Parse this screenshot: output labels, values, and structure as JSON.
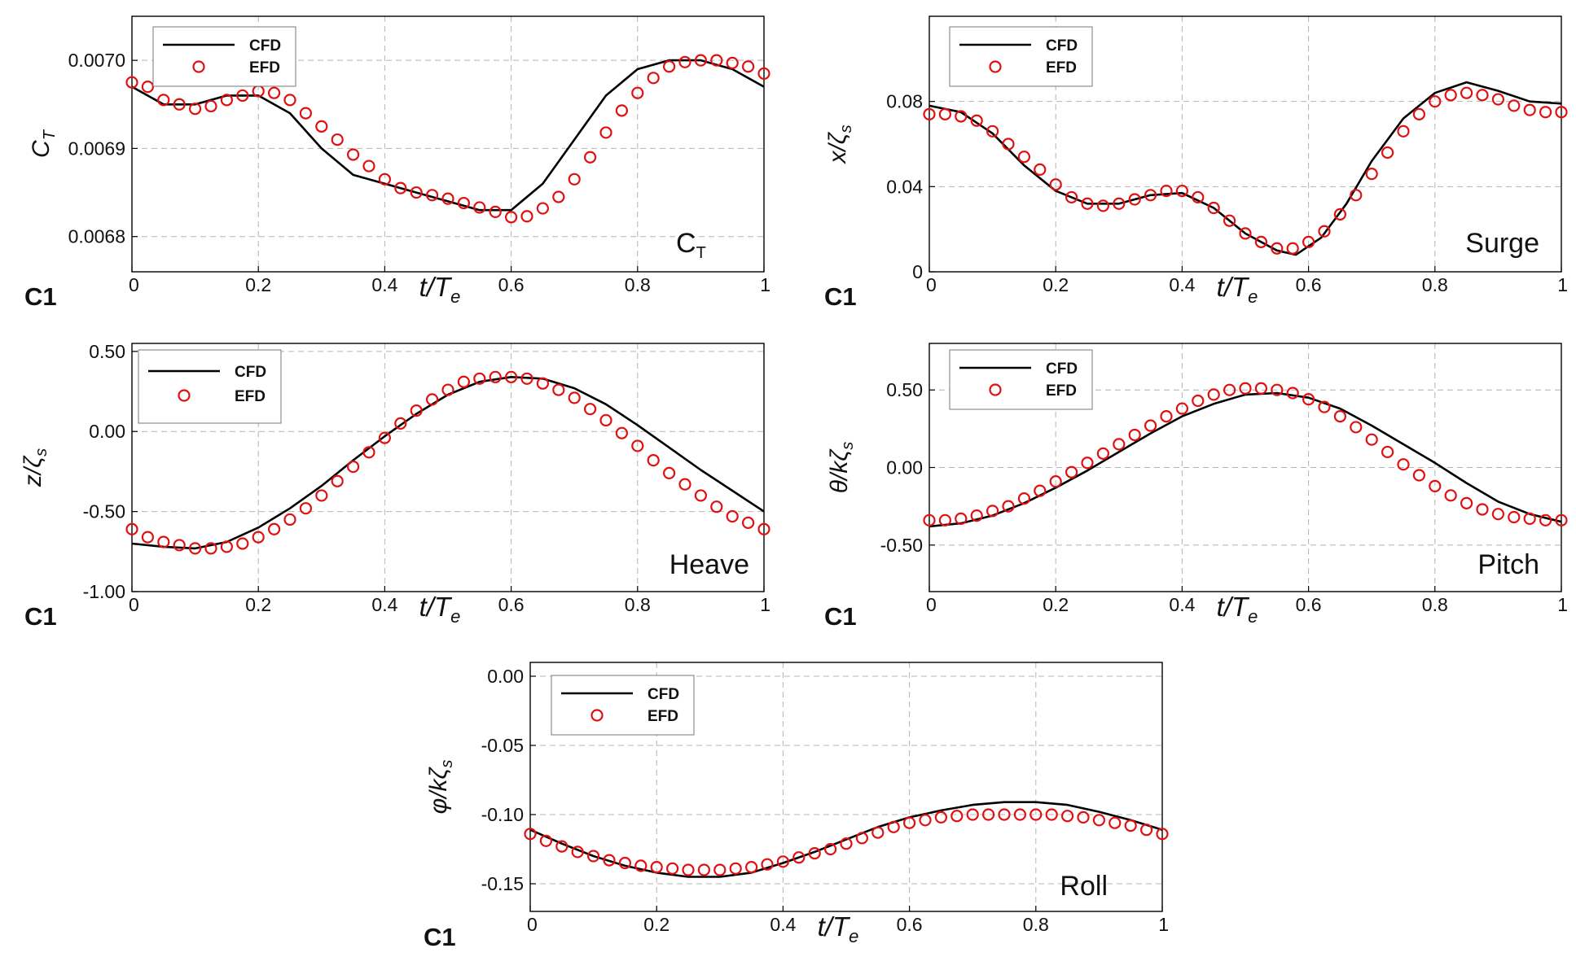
{
  "figure": {
    "x_label_main": "t/T",
    "x_label_sub": "e",
    "x_ticks": [
      "0",
      "0.2",
      "0.4",
      "0.6",
      "0.8",
      "1"
    ],
    "legend": {
      "cfd": "CFD",
      "efd": "EFD"
    },
    "colors": {
      "cfd": "#000000",
      "efd": "#e01010",
      "grid": "#b4b4b4",
      "frame": "#000000"
    },
    "icons": {
      "cfd": "line-icon",
      "efd": "circle-icon"
    }
  },
  "chart_data": [
    {
      "id": "ct",
      "type": "line",
      "case_label": "C1",
      "panel_label": "CT",
      "ylabel": "CT",
      "ylim": [
        0.00676,
        0.00705
      ],
      "xlim": [
        0,
        1
      ],
      "yticks": [
        0.0068,
        0.0069,
        0.007
      ],
      "ytick_labels": [
        "0.0068",
        "0.0069",
        "0.0070"
      ],
      "series": [
        {
          "name": "CFD",
          "x": [
            0,
            0.05,
            0.1,
            0.15,
            0.2,
            0.25,
            0.3,
            0.35,
            0.4,
            0.45,
            0.5,
            0.55,
            0.6,
            0.65,
            0.7,
            0.75,
            0.8,
            0.85,
            0.9,
            0.95,
            1
          ],
          "y": [
            0.00697,
            0.00695,
            0.00695,
            0.00696,
            0.00696,
            0.00694,
            0.0069,
            0.00687,
            0.00686,
            0.00685,
            0.00684,
            0.00683,
            0.00683,
            0.00686,
            0.00691,
            0.00696,
            0.00699,
            0.007,
            0.007,
            0.00699,
            0.00697
          ]
        },
        {
          "name": "EFD",
          "x": [
            0,
            0.025,
            0.05,
            0.075,
            0.1,
            0.125,
            0.15,
            0.175,
            0.2,
            0.225,
            0.25,
            0.275,
            0.3,
            0.325,
            0.35,
            0.375,
            0.4,
            0.425,
            0.45,
            0.475,
            0.5,
            0.525,
            0.55,
            0.575,
            0.6,
            0.625,
            0.65,
            0.675,
            0.7,
            0.725,
            0.75,
            0.775,
            0.8,
            0.825,
            0.85,
            0.875,
            0.9,
            0.925,
            0.95,
            0.975,
            1
          ],
          "y": [
            0.006975,
            0.00697,
            0.006955,
            0.00695,
            0.006945,
            0.006948,
            0.006955,
            0.00696,
            0.006965,
            0.006963,
            0.006955,
            0.00694,
            0.006925,
            0.00691,
            0.006893,
            0.00688,
            0.006865,
            0.006855,
            0.00685,
            0.006847,
            0.006843,
            0.006838,
            0.006833,
            0.006828,
            0.006822,
            0.006823,
            0.006832,
            0.006845,
            0.006865,
            0.00689,
            0.006918,
            0.006943,
            0.006963,
            0.00698,
            0.006993,
            0.006998,
            0.007,
            0.007,
            0.006997,
            0.006993,
            0.006985
          ]
        }
      ]
    },
    {
      "id": "surge",
      "type": "line",
      "case_label": "C1",
      "panel_label": "Surge",
      "ylabel": "x/ζs",
      "ylabel_main": "x/",
      "ylim": [
        0,
        0.12
      ],
      "xlim": [
        0,
        1
      ],
      "yticks": [
        0,
        0.04,
        0.08
      ],
      "ytick_labels": [
        "0",
        "0.04",
        "0.08"
      ],
      "series": [
        {
          "name": "CFD",
          "x": [
            0,
            0.05,
            0.1,
            0.15,
            0.2,
            0.25,
            0.3,
            0.35,
            0.4,
            0.45,
            0.5,
            0.55,
            0.58,
            0.62,
            0.66,
            0.7,
            0.75,
            0.8,
            0.85,
            0.9,
            0.95,
            1
          ],
          "y": [
            0.078,
            0.075,
            0.065,
            0.05,
            0.038,
            0.032,
            0.032,
            0.036,
            0.037,
            0.03,
            0.018,
            0.01,
            0.008,
            0.016,
            0.032,
            0.052,
            0.072,
            0.084,
            0.089,
            0.085,
            0.08,
            0.079
          ]
        },
        {
          "name": "EFD",
          "x": [
            0,
            0.025,
            0.05,
            0.075,
            0.1,
            0.125,
            0.15,
            0.175,
            0.2,
            0.225,
            0.25,
            0.275,
            0.3,
            0.325,
            0.35,
            0.375,
            0.4,
            0.425,
            0.45,
            0.475,
            0.5,
            0.525,
            0.55,
            0.575,
            0.6,
            0.625,
            0.65,
            0.675,
            0.7,
            0.725,
            0.75,
            0.775,
            0.8,
            0.825,
            0.85,
            0.875,
            0.9,
            0.925,
            0.95,
            0.975,
            1
          ],
          "y": [
            0.074,
            0.074,
            0.073,
            0.071,
            0.066,
            0.06,
            0.054,
            0.048,
            0.041,
            0.035,
            0.032,
            0.031,
            0.032,
            0.034,
            0.036,
            0.038,
            0.038,
            0.035,
            0.03,
            0.024,
            0.018,
            0.014,
            0.011,
            0.011,
            0.014,
            0.019,
            0.027,
            0.036,
            0.046,
            0.056,
            0.066,
            0.074,
            0.08,
            0.083,
            0.084,
            0.083,
            0.081,
            0.078,
            0.076,
            0.075,
            0.075
          ]
        }
      ]
    },
    {
      "id": "heave",
      "type": "line",
      "case_label": "C1",
      "panel_label": "Heave",
      "ylabel": "z/ζs",
      "ylabel_main": "z/",
      "ylim": [
        -1.0,
        0.55
      ],
      "xlim": [
        0,
        1
      ],
      "yticks": [
        -1.0,
        -0.5,
        0.0,
        0.5
      ],
      "ytick_labels": [
        "-1.00",
        "-0.50",
        "0.00",
        "0.50"
      ],
      "series": [
        {
          "name": "CFD",
          "x": [
            0,
            0.05,
            0.1,
            0.15,
            0.2,
            0.25,
            0.3,
            0.35,
            0.4,
            0.45,
            0.5,
            0.55,
            0.6,
            0.65,
            0.7,
            0.75,
            0.8,
            0.85,
            0.9,
            0.95,
            1
          ],
          "y": [
            -0.7,
            -0.72,
            -0.73,
            -0.69,
            -0.6,
            -0.48,
            -0.34,
            -0.18,
            -0.03,
            0.11,
            0.23,
            0.31,
            0.34,
            0.33,
            0.27,
            0.17,
            0.04,
            -0.1,
            -0.24,
            -0.37,
            -0.5
          ]
        },
        {
          "name": "EFD",
          "x": [
            0,
            0.025,
            0.05,
            0.075,
            0.1,
            0.125,
            0.15,
            0.175,
            0.2,
            0.225,
            0.25,
            0.275,
            0.3,
            0.325,
            0.35,
            0.375,
            0.4,
            0.425,
            0.45,
            0.475,
            0.5,
            0.525,
            0.55,
            0.575,
            0.6,
            0.625,
            0.65,
            0.675,
            0.7,
            0.725,
            0.75,
            0.775,
            0.8,
            0.825,
            0.85,
            0.875,
            0.9,
            0.925,
            0.95,
            0.975,
            1
          ],
          "y": [
            -0.61,
            -0.66,
            -0.69,
            -0.71,
            -0.73,
            -0.73,
            -0.72,
            -0.7,
            -0.66,
            -0.61,
            -0.55,
            -0.48,
            -0.4,
            -0.31,
            -0.22,
            -0.13,
            -0.04,
            0.05,
            0.13,
            0.2,
            0.26,
            0.31,
            0.33,
            0.34,
            0.34,
            0.33,
            0.3,
            0.26,
            0.21,
            0.14,
            0.07,
            -0.01,
            -0.09,
            -0.18,
            -0.26,
            -0.33,
            -0.4,
            -0.47,
            -0.53,
            -0.57,
            -0.61
          ]
        }
      ]
    },
    {
      "id": "pitch",
      "type": "line",
      "case_label": "C1",
      "panel_label": "Pitch",
      "ylabel": "θ/kζs",
      "ylabel_main": "θ/k",
      "ylim": [
        -0.8,
        0.8
      ],
      "xlim": [
        0,
        1
      ],
      "yticks": [
        -0.5,
        0.0,
        0.5
      ],
      "ytick_labels": [
        "-0.50",
        "0.00",
        "0.50"
      ],
      "series": [
        {
          "name": "CFD",
          "x": [
            0,
            0.05,
            0.1,
            0.15,
            0.2,
            0.25,
            0.3,
            0.35,
            0.4,
            0.45,
            0.5,
            0.55,
            0.6,
            0.65,
            0.7,
            0.75,
            0.8,
            0.85,
            0.9,
            0.95,
            1
          ],
          "y": [
            -0.38,
            -0.36,
            -0.31,
            -0.23,
            -0.13,
            -0.02,
            0.1,
            0.22,
            0.33,
            0.41,
            0.47,
            0.48,
            0.45,
            0.38,
            0.27,
            0.15,
            0.03,
            -0.1,
            -0.22,
            -0.3,
            -0.35
          ]
        },
        {
          "name": "EFD",
          "x": [
            0,
            0.025,
            0.05,
            0.075,
            0.1,
            0.125,
            0.15,
            0.175,
            0.2,
            0.225,
            0.25,
            0.275,
            0.3,
            0.325,
            0.35,
            0.375,
            0.4,
            0.425,
            0.45,
            0.475,
            0.5,
            0.525,
            0.55,
            0.575,
            0.6,
            0.625,
            0.65,
            0.675,
            0.7,
            0.725,
            0.75,
            0.775,
            0.8,
            0.825,
            0.85,
            0.875,
            0.9,
            0.925,
            0.95,
            0.975,
            1
          ],
          "y": [
            -0.34,
            -0.34,
            -0.33,
            -0.31,
            -0.28,
            -0.25,
            -0.2,
            -0.15,
            -0.09,
            -0.03,
            0.03,
            0.09,
            0.15,
            0.21,
            0.27,
            0.33,
            0.38,
            0.43,
            0.47,
            0.5,
            0.51,
            0.51,
            0.5,
            0.48,
            0.44,
            0.39,
            0.33,
            0.26,
            0.18,
            0.1,
            0.02,
            -0.05,
            -0.12,
            -0.18,
            -0.23,
            -0.27,
            -0.3,
            -0.32,
            -0.33,
            -0.34,
            -0.34
          ]
        }
      ]
    },
    {
      "id": "roll",
      "type": "line",
      "case_label": "C1",
      "panel_label": "Roll",
      "ylabel": "φ/kζs",
      "ylabel_main": "φ/k",
      "ylim": [
        -0.17,
        0.01
      ],
      "xlim": [
        0,
        1
      ],
      "yticks": [
        -0.15,
        -0.1,
        -0.05,
        0.0
      ],
      "ytick_labels": [
        "-0.15",
        "-0.10",
        "-0.05",
        "0.00"
      ],
      "series": [
        {
          "name": "CFD",
          "x": [
            0,
            0.05,
            0.1,
            0.15,
            0.2,
            0.25,
            0.3,
            0.35,
            0.4,
            0.45,
            0.5,
            0.55,
            0.6,
            0.65,
            0.7,
            0.75,
            0.8,
            0.85,
            0.9,
            0.95,
            1
          ],
          "y": [
            -0.111,
            -0.121,
            -0.13,
            -0.137,
            -0.142,
            -0.145,
            -0.145,
            -0.142,
            -0.135,
            -0.127,
            -0.118,
            -0.109,
            -0.102,
            -0.097,
            -0.093,
            -0.091,
            -0.091,
            -0.093,
            -0.098,
            -0.104,
            -0.111
          ]
        },
        {
          "name": "EFD",
          "x": [
            0,
            0.025,
            0.05,
            0.075,
            0.1,
            0.125,
            0.15,
            0.175,
            0.2,
            0.225,
            0.25,
            0.275,
            0.3,
            0.325,
            0.35,
            0.375,
            0.4,
            0.425,
            0.45,
            0.475,
            0.5,
            0.525,
            0.55,
            0.575,
            0.6,
            0.625,
            0.65,
            0.675,
            0.7,
            0.725,
            0.75,
            0.775,
            0.8,
            0.825,
            0.85,
            0.875,
            0.9,
            0.925,
            0.95,
            0.975,
            1
          ],
          "y": [
            -0.114,
            -0.119,
            -0.123,
            -0.127,
            -0.13,
            -0.133,
            -0.135,
            -0.137,
            -0.138,
            -0.139,
            -0.14,
            -0.14,
            -0.14,
            -0.139,
            -0.138,
            -0.136,
            -0.134,
            -0.131,
            -0.128,
            -0.125,
            -0.121,
            -0.117,
            -0.113,
            -0.109,
            -0.106,
            -0.104,
            -0.102,
            -0.101,
            -0.1,
            -0.1,
            -0.1,
            -0.1,
            -0.1,
            -0.1,
            -0.101,
            -0.102,
            -0.104,
            -0.106,
            -0.108,
            -0.111,
            -0.114
          ]
        }
      ]
    }
  ]
}
